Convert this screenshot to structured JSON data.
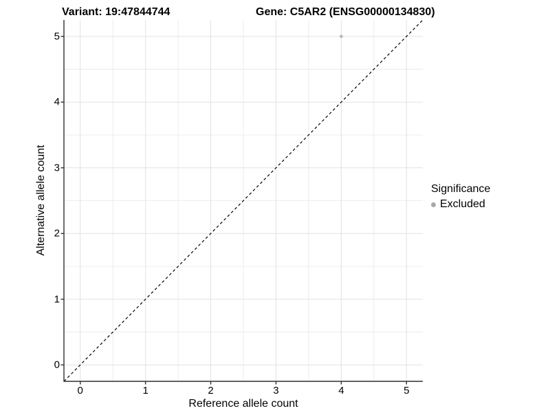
{
  "titles": {
    "variant": "Variant: 19:47844744",
    "gene": "Gene: C5AR2 (ENSG00000134830)"
  },
  "chart_data": {
    "type": "scatter",
    "xlabel": "Reference allele count",
    "ylabel": "Alternative allele count",
    "xlim": [
      -0.25,
      5.25
    ],
    "ylim": [
      -0.25,
      5.25
    ],
    "x_ticks": [
      0,
      1,
      2,
      3,
      4,
      5
    ],
    "y_ticks": [
      0,
      1,
      2,
      3,
      4,
      5
    ],
    "x_minor": [
      0.5,
      1.5,
      2.5,
      3.5,
      4.5
    ],
    "y_minor": [
      0.5,
      1.5,
      2.5,
      3.5,
      4.5
    ],
    "grid": true,
    "series": [
      {
        "name": "Excluded",
        "color": "#b9b9b9",
        "marker": "circle",
        "marker_radius": 2.4,
        "points": [
          {
            "x": 4,
            "y": 5
          }
        ]
      }
    ],
    "reference_line": {
      "type": "identity-diagonal",
      "slope": 1,
      "intercept": 0,
      "style": "dashed",
      "color": "#000000"
    },
    "legend": {
      "title": "Significance",
      "position": "right",
      "entries": [
        {
          "label": "Excluded",
          "color": "#a8a8a8"
        }
      ]
    },
    "styles": {
      "grid_major_color": "#e2e2e2",
      "grid_minor_color": "#ececec",
      "axis_line_color": "#2f2f2f",
      "tick_color": "#2f2f2f",
      "text_color": "#000000",
      "background": "#ffffff"
    }
  }
}
